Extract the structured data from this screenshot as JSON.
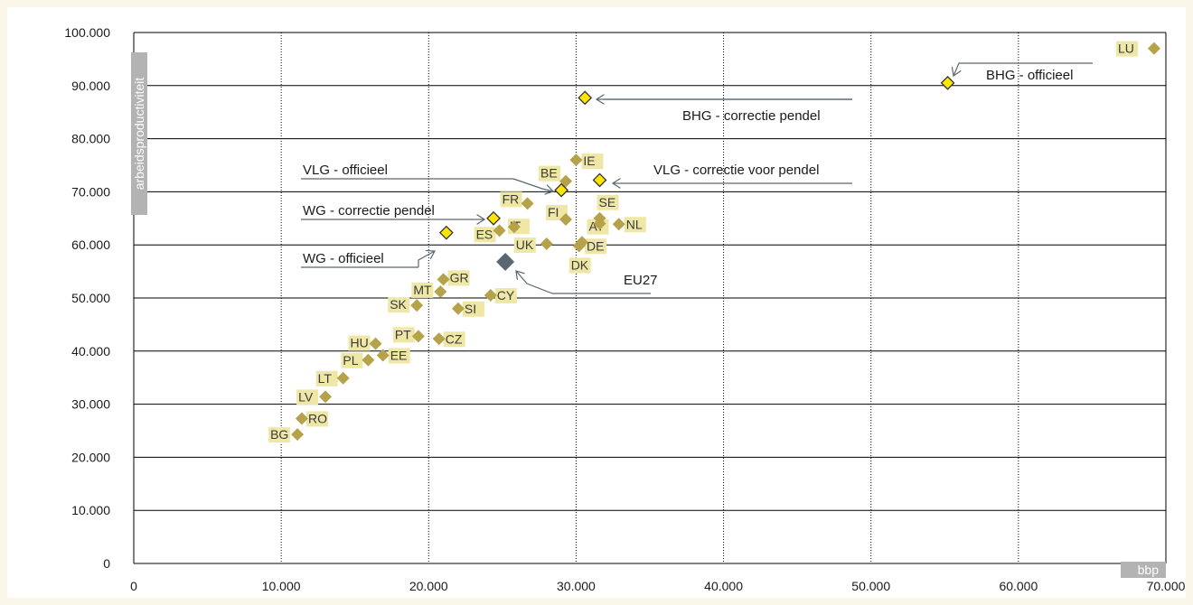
{
  "chart_data": {
    "type": "scatter",
    "xlabel": "bbp",
    "ylabel": "arbeidsproductiviteit",
    "xlim": [
      0,
      70000
    ],
    "ylim": [
      0,
      100000
    ],
    "x_ticks": [
      "0",
      "10.000",
      "20.000",
      "30.000",
      "40.000",
      "50.000",
      "60.000",
      "70.000"
    ],
    "y_ticks": [
      "0",
      "10.000",
      "20.000",
      "30.000",
      "40.000",
      "50.000",
      "60.000",
      "70.000",
      "80.000",
      "90.000",
      "100.000"
    ],
    "grid": {
      "x": "dotted",
      "y": "solid"
    },
    "colors": {
      "country": "#b5a24a",
      "region": "#ffe600",
      "region_border": "#333333",
      "eu": "#5a6670",
      "label_bg": "#efe7a6",
      "axis_title_bg": "#b3b3b3"
    },
    "points": [
      {
        "label": "LU",
        "x": 69200,
        "y": 97000,
        "group": "country"
      },
      {
        "label": "IE",
        "x": 30000,
        "y": 76000,
        "group": "country"
      },
      {
        "label": "BE",
        "x": 29300,
        "y": 72000,
        "group": "country"
      },
      {
        "label": "FR",
        "x": 26700,
        "y": 67800,
        "group": "country"
      },
      {
        "label": "SE",
        "x": 31600,
        "y": 65000,
        "group": "country"
      },
      {
        "label": "FI",
        "x": 29300,
        "y": 64800,
        "group": "country"
      },
      {
        "label": "AT",
        "x": 31600,
        "y": 64000,
        "group": "country"
      },
      {
        "label": "NL",
        "x": 32900,
        "y": 63900,
        "group": "country"
      },
      {
        "label": "IT",
        "x": 25800,
        "y": 63400,
        "group": "country"
      },
      {
        "label": "ES",
        "x": 24800,
        "y": 62700,
        "group": "country"
      },
      {
        "label": "DE",
        "x": 30400,
        "y": 60500,
        "group": "country"
      },
      {
        "label": "UK",
        "x": 28000,
        "y": 60200,
        "group": "country"
      },
      {
        "label": "DK",
        "x": 30200,
        "y": 59800,
        "group": "country"
      },
      {
        "label": "GR",
        "x": 21000,
        "y": 53500,
        "group": "country"
      },
      {
        "label": "MT",
        "x": 20800,
        "y": 51200,
        "group": "country"
      },
      {
        "label": "CY",
        "x": 24200,
        "y": 50500,
        "group": "country"
      },
      {
        "label": "SK",
        "x": 19200,
        "y": 48600,
        "group": "country"
      },
      {
        "label": "SI",
        "x": 22000,
        "y": 48000,
        "group": "country"
      },
      {
        "label": "PT",
        "x": 19300,
        "y": 42800,
        "group": "country"
      },
      {
        "label": "CZ",
        "x": 20700,
        "y": 42300,
        "group": "country"
      },
      {
        "label": "HU",
        "x": 16400,
        "y": 41400,
        "group": "country"
      },
      {
        "label": "EE",
        "x": 16900,
        "y": 39200,
        "group": "country"
      },
      {
        "label": "PL",
        "x": 15900,
        "y": 38300,
        "group": "country"
      },
      {
        "label": "LT",
        "x": 14200,
        "y": 34900,
        "group": "country"
      },
      {
        "label": "LV",
        "x": 13000,
        "y": 31400,
        "group": "country"
      },
      {
        "label": "RO",
        "x": 11400,
        "y": 27300,
        "group": "country"
      },
      {
        "label": "BG",
        "x": 11100,
        "y": 24300,
        "group": "country"
      },
      {
        "label": "EU27",
        "x": 25200,
        "y": 56800,
        "group": "eu"
      },
      {
        "label": "BHG - officieel",
        "x": 55200,
        "y": 90500,
        "group": "region"
      },
      {
        "label": "BHG - correctie pendel",
        "x": 30600,
        "y": 87700,
        "group": "region"
      },
      {
        "label": "VLG - correctie voor pendel",
        "x": 31600,
        "y": 72200,
        "group": "region"
      },
      {
        "label": "VLG - officieel",
        "x": 29000,
        "y": 70300,
        "group": "region"
      },
      {
        "label": "WG - correctie pendel",
        "x": 24400,
        "y": 65000,
        "group": "region"
      },
      {
        "label": "WG - officieel",
        "x": 21200,
        "y": 62300,
        "group": "region"
      }
    ]
  }
}
